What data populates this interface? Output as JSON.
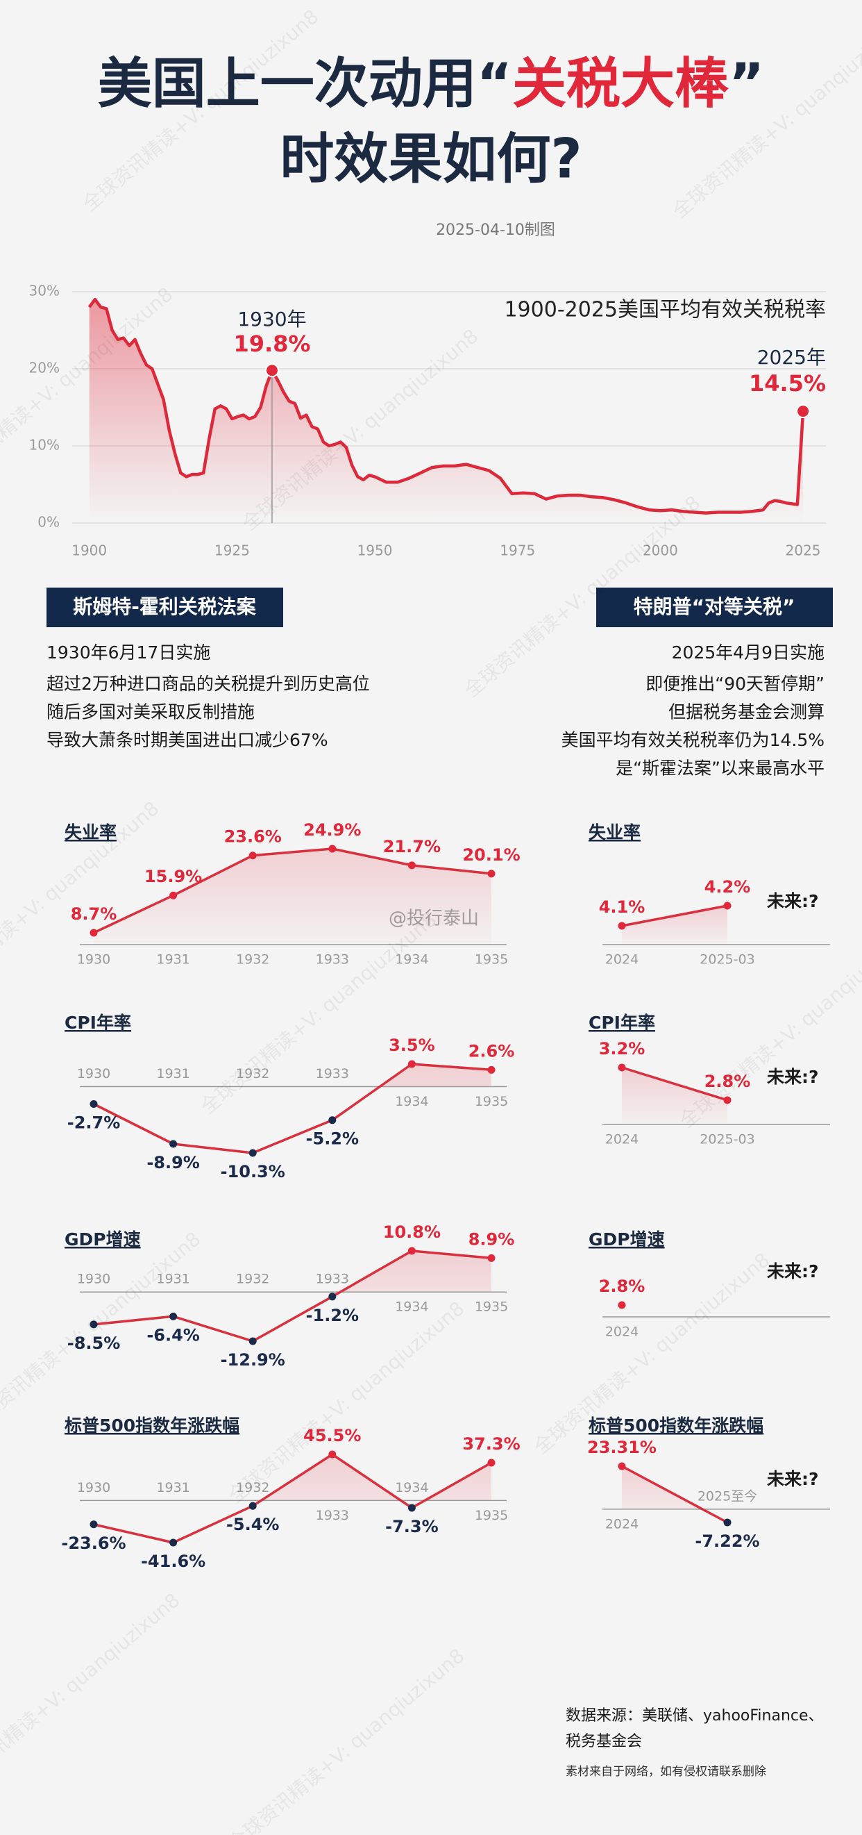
{
  "header": {
    "title_parts": [
      "美国上一次动用“",
      "关税大棒",
      "”",
      "时效果如何?"
    ],
    "date": "2025-04-10制图"
  },
  "chart_data": [
    {
      "type": "line",
      "title": "1900-2025美国平均有效关税税率",
      "x": [
        1900,
        1901,
        1902,
        1903,
        1904,
        1905,
        1906,
        1907,
        1908,
        1909,
        1910,
        1911,
        1912,
        1913,
        1914,
        1915,
        1916,
        1917,
        1918,
        1919,
        1920,
        1921,
        1922,
        1923,
        1924,
        1925,
        1926,
        1927,
        1928,
        1929,
        1930,
        1931,
        1932,
        1933,
        1934,
        1935,
        1936,
        1937,
        1938,
        1939,
        1940,
        1941,
        1942,
        1943,
        1944,
        1945,
        1946,
        1947,
        1948,
        1949,
        1950,
        1952,
        1954,
        1956,
        1958,
        1960,
        1962,
        1964,
        1966,
        1968,
        1970,
        1972,
        1974,
        1976,
        1978,
        1980,
        1982,
        1984,
        1986,
        1988,
        1990,
        1992,
        1994,
        1996,
        1998,
        2000,
        2002,
        2004,
        2006,
        2008,
        2010,
        2012,
        2014,
        2016,
        2018,
        2019,
        2020,
        2021,
        2022,
        2023,
        2024,
        2025
      ],
      "values": [
        28,
        29,
        28,
        27.8,
        25,
        23.8,
        24,
        23,
        23.8,
        22,
        20.5,
        20,
        18,
        16,
        12,
        9,
        6.5,
        6,
        6.3,
        6.3,
        6.5,
        11,
        14.8,
        15.2,
        14.8,
        13.5,
        13.8,
        14,
        13.5,
        13.8,
        15,
        17.8,
        19.8,
        18.5,
        17,
        15.8,
        15.5,
        13.6,
        14,
        12.5,
        12.2,
        10.5,
        10,
        10.2,
        10.5,
        9.8,
        7.5,
        6,
        5.6,
        6.2,
        6,
        5.3,
        5.3,
        5.8,
        6.5,
        7.2,
        7.4,
        7.4,
        7.6,
        7.2,
        6.8,
        5.8,
        3.8,
        3.9,
        3.8,
        3.1,
        3.5,
        3.6,
        3.6,
        3.4,
        3.3,
        3.0,
        2.6,
        2.1,
        1.7,
        1.6,
        1.7,
        1.5,
        1.4,
        1.3,
        1.4,
        1.4,
        1.4,
        1.5,
        1.7,
        2.6,
        2.9,
        2.8,
        2.6,
        2.5,
        2.4,
        14.5
      ],
      "color": "#dc2a3a",
      "xlim": [
        1897,
        2029
      ],
      "xticks": [
        1900,
        1925,
        1950,
        1975,
        2000,
        2025
      ],
      "ylim": [
        0,
        30
      ],
      "yticks": [
        {
          "value": 0,
          "label": "0%"
        },
        {
          "value": 10,
          "label": "10%"
        },
        {
          "value": 20,
          "label": "20%"
        },
        {
          "value": 30,
          "label": "30%"
        }
      ],
      "grid": true,
      "annotations": [
        {
          "x": 1932,
          "y": 19.8,
          "label": "1930年",
          "value_label": "19.8%"
        },
        {
          "x": 2025,
          "y": 14.5,
          "label": "2025年",
          "value_label": "14.5%"
        }
      ]
    },
    {
      "type": "line",
      "title": "失业率",
      "categories": [
        "1930",
        "1931",
        "1932",
        "1933",
        "1934",
        "1935"
      ],
      "values": [
        8.7,
        15.9,
        23.6,
        24.9,
        21.7,
        20.1
      ],
      "value_labels": [
        "8.7%",
        "15.9%",
        "23.6%",
        "24.9%",
        "21.7%",
        "20.1%"
      ]
    },
    {
      "type": "line",
      "title": "CPI年率",
      "categories": [
        "1930",
        "1931",
        "1932",
        "1933",
        "1934",
        "1935"
      ],
      "values": [
        -2.7,
        -8.9,
        -10.3,
        -5.2,
        3.5,
        2.6
      ],
      "value_labels": [
        "-2.7%",
        "-8.9%",
        "-10.3%",
        "-5.2%",
        "3.5%",
        "2.6%"
      ]
    },
    {
      "type": "line",
      "title": "GDP增速",
      "categories": [
        "1930",
        "1931",
        "1932",
        "1933",
        "1934",
        "1935"
      ],
      "values": [
        -8.5,
        -6.4,
        -12.9,
        -1.2,
        10.8,
        8.9
      ],
      "value_labels": [
        "-8.5%",
        "-6.4%",
        "-12.9%",
        "-1.2%",
        "10.8%",
        "8.9%"
      ]
    },
    {
      "type": "line",
      "title": "标普500指数年涨跌幅",
      "categories": [
        "1930",
        "1931",
        "1932",
        "1933",
        "1934",
        "1935"
      ],
      "values": [
        -23.6,
        -41.6,
        -5.4,
        45.5,
        -7.3,
        37.3
      ],
      "value_labels": [
        "-23.6%",
        "-41.6%",
        "-5.4%",
        "45.5%",
        "-7.3%",
        "37.3%"
      ]
    },
    {
      "type": "line",
      "title": "失业率",
      "categories": [
        "2024",
        "2025-03"
      ],
      "values": [
        4.1,
        4.2
      ],
      "value_labels": [
        "4.1%",
        "4.2%"
      ],
      "note": "未来:?"
    },
    {
      "type": "line",
      "title": "CPI年率",
      "categories": [
        "2024",
        "2025-03"
      ],
      "values": [
        3.2,
        2.8
      ],
      "value_labels": [
        "3.2%",
        "2.8%"
      ],
      "note": "未来:?"
    },
    {
      "type": "line",
      "title": "GDP增速",
      "categories": [
        "2024"
      ],
      "values": [
        2.8
      ],
      "value_labels": [
        "2.8%"
      ],
      "note": "未来:?"
    },
    {
      "type": "line",
      "title": "标普500指数年涨跌幅",
      "categories": [
        "2024",
        "2025至今"
      ],
      "values": [
        23.31,
        -7.22
      ],
      "value_labels": [
        "23.31%",
        "-7.22%"
      ],
      "note": "未来:?"
    }
  ],
  "left_block": {
    "tag": "斯姆特-霍利关税法案",
    "date": "1930年6月17日实施",
    "lines": [
      "超过2万种进口商品的关税提升到历史高位",
      "随后多国对美采取反制措施",
      "导致大萧条时期美国进出口减少67%"
    ]
  },
  "right_block": {
    "tag": "特朗普“对等关税”",
    "date": "2025年4月9日实施",
    "lines": [
      "即便推出“90天暂停期”",
      "但据税务基金会测算",
      "美国平均有效关税税率仍为14.5%",
      "是“斯霍法案”以来最高水平"
    ]
  },
  "watermark": "全球资讯精读+V: quanqiuzixun8",
  "weibo": "@投行泰山",
  "footer": {
    "source": "数据来源：美联储、yahooFinance、税务基金会",
    "disclaimer": "素材来自于网络，如有侵权请联系删除"
  }
}
